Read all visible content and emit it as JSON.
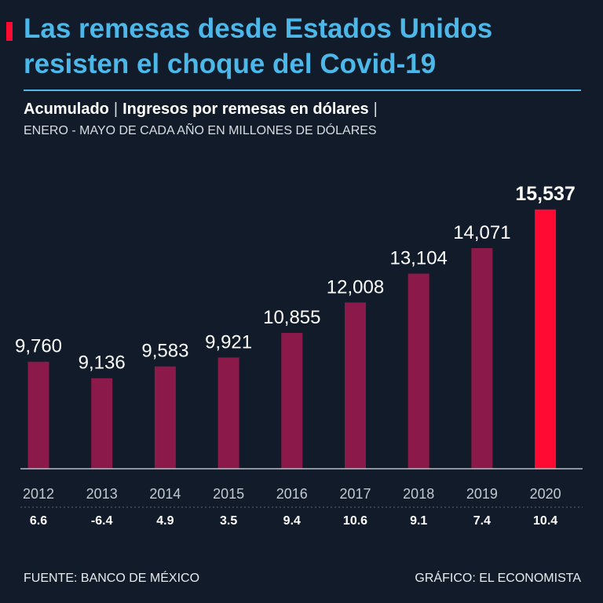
{
  "header": {
    "title": "Las remesas desde Estados Unidos resisten el choque del Covid-19",
    "subtitle_part1": "Acumulado",
    "subtitle_sep": "|",
    "subtitle_part2": "Ingresos por remesas en dólares",
    "subtitle_end": "|",
    "note": "ENERO - MAYO DE CADA AÑO EN MILLONES DE DÓLARES"
  },
  "footer": {
    "source": "FUENTE: BANCO DE MÉXICO",
    "credit": "GRÁFICO: EL ECONOMISTA"
  },
  "colors": {
    "background": "#111b29",
    "title": "#4cb8ea",
    "bar": "#8b1a4a",
    "highlight": "#ff0a32",
    "axis": "#b8bec6"
  },
  "chart_data": {
    "type": "bar",
    "categories": [
      "2012",
      "2013",
      "2014",
      "2015",
      "2016",
      "2017",
      "2018",
      "2019",
      "2020"
    ],
    "values": [
      9760,
      9136,
      9583,
      9921,
      10855,
      12008,
      13104,
      14071,
      15537
    ],
    "value_labels": [
      "9,760",
      "9,136",
      "9,583",
      "9,921",
      "10,855",
      "12,008",
      "13,104",
      "14,071",
      "15,537"
    ],
    "growth_labels": [
      "6.6",
      "-6.4",
      "4.9",
      "3.5",
      "9.4",
      "10.6",
      "9.1",
      "7.4",
      "10.4"
    ],
    "highlight_index": 8,
    "ylim": [
      5700,
      15800
    ],
    "title": "Acumulado | Ingresos por remesas en dólares",
    "xlabel": "",
    "ylabel": ""
  }
}
